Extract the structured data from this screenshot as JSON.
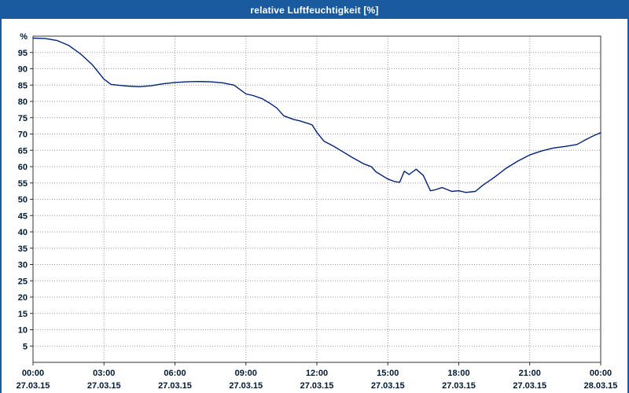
{
  "window": {
    "title": "relative Luftfeuchtigkeit [%]"
  },
  "colors": {
    "titlebar": "#1a5a9e",
    "border": "#1a5a9e",
    "background": "#ffffff",
    "line": "#00217a",
    "grid": "#999999",
    "frame": "#333333",
    "text": "#001a33"
  },
  "chart_data": {
    "type": "line",
    "title": "relative Luftfeuchtigkeit [%]",
    "xlabel": "",
    "ylabel": "%",
    "unit_label": "%",
    "ylim": [
      0,
      100
    ],
    "xlim_hours": [
      0,
      24
    ],
    "grid": true,
    "legend": "none",
    "y_ticks": [
      5,
      10,
      15,
      20,
      25,
      30,
      35,
      40,
      45,
      50,
      55,
      60,
      65,
      70,
      75,
      80,
      85,
      90,
      95
    ],
    "x_ticks": [
      {
        "hour": 0,
        "time": "00:00",
        "date": "27.03.15"
      },
      {
        "hour": 3,
        "time": "03:00",
        "date": "27.03.15"
      },
      {
        "hour": 6,
        "time": "06:00",
        "date": "27.03.15"
      },
      {
        "hour": 9,
        "time": "09:00",
        "date": "27.03.15"
      },
      {
        "hour": 12,
        "time": "12:00",
        "date": "27.03.15"
      },
      {
        "hour": 15,
        "time": "15:00",
        "date": "27.03.15"
      },
      {
        "hour": 18,
        "time": "18:00",
        "date": "27.03.15"
      },
      {
        "hour": 21,
        "time": "21:00",
        "date": "27.03.15"
      },
      {
        "hour": 24,
        "time": "00:00",
        "date": "28.03.15"
      }
    ],
    "series": [
      {
        "name": "relative Luftfeuchtigkeit",
        "color": "#00217a",
        "points": [
          [
            0,
            99.4
          ],
          [
            0.5,
            99.3
          ],
          [
            1,
            98.7
          ],
          [
            1.5,
            97.2
          ],
          [
            2,
            94.6
          ],
          [
            2.5,
            91.3
          ],
          [
            3,
            86.8
          ],
          [
            3.3,
            85.2
          ],
          [
            3.7,
            84.9
          ],
          [
            4,
            84.7
          ],
          [
            4.5,
            84.5
          ],
          [
            5,
            84.8
          ],
          [
            5.5,
            85.4
          ],
          [
            6,
            85.8
          ],
          [
            6.5,
            86.0
          ],
          [
            7,
            86.1
          ],
          [
            7.5,
            86.0
          ],
          [
            8,
            85.7
          ],
          [
            8.5,
            85.0
          ],
          [
            9,
            82.3
          ],
          [
            9.3,
            81.8
          ],
          [
            9.7,
            80.8
          ],
          [
            10,
            79.5
          ],
          [
            10.3,
            78.0
          ],
          [
            10.6,
            75.6
          ],
          [
            11,
            74.5
          ],
          [
            11.3,
            74.0
          ],
          [
            11.6,
            73.3
          ],
          [
            11.8,
            72.8
          ],
          [
            12,
            70.5
          ],
          [
            12.3,
            67.8
          ],
          [
            12.7,
            66.3
          ],
          [
            13,
            65.0
          ],
          [
            13.5,
            62.8
          ],
          [
            14,
            60.8
          ],
          [
            14.3,
            60.0
          ],
          [
            14.5,
            58.4
          ],
          [
            15,
            56.2
          ],
          [
            15.3,
            55.4
          ],
          [
            15.5,
            55.2
          ],
          [
            15.7,
            58.6
          ],
          [
            15.9,
            57.6
          ],
          [
            16.2,
            59.2
          ],
          [
            16.5,
            57.3
          ],
          [
            16.8,
            52.6
          ],
          [
            17,
            52.9
          ],
          [
            17.3,
            53.6
          ],
          [
            17.7,
            52.4
          ],
          [
            18,
            52.6
          ],
          [
            18.3,
            52.1
          ],
          [
            18.7,
            52.4
          ],
          [
            19,
            54.2
          ],
          [
            19.5,
            56.7
          ],
          [
            20,
            59.5
          ],
          [
            20.5,
            61.7
          ],
          [
            21,
            63.6
          ],
          [
            21.5,
            64.8
          ],
          [
            22,
            65.7
          ],
          [
            22.5,
            66.2
          ],
          [
            23,
            66.8
          ],
          [
            23.3,
            68.0
          ],
          [
            23.7,
            69.5
          ],
          [
            24,
            70.4
          ]
        ]
      }
    ]
  }
}
